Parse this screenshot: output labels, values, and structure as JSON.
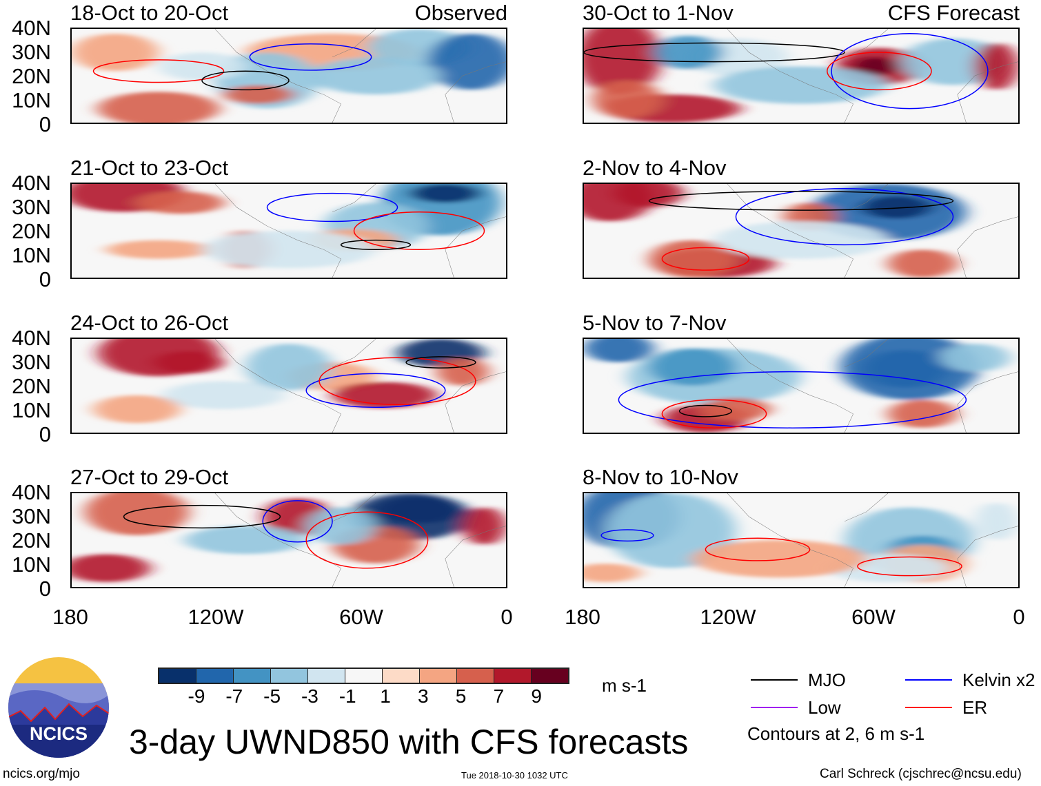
{
  "panels_left": [
    {
      "title": "18-Oct to 20-Oct",
      "tag": "Observed"
    },
    {
      "title": "21-Oct to 23-Oct"
    },
    {
      "title": "24-Oct to 26-Oct"
    },
    {
      "title": "27-Oct to 29-Oct"
    }
  ],
  "panels_right": [
    {
      "title": "30-Oct to 1-Nov",
      "tag": "CFS Forecast"
    },
    {
      "title": "2-Nov to 4-Nov"
    },
    {
      "title": "5-Nov to 7-Nov"
    },
    {
      "title": "8-Nov to 10-Nov"
    }
  ],
  "y_ticks": [
    "40N",
    "30N",
    "20N",
    "10N",
    "0"
  ],
  "x_ticks": [
    "180",
    "120W",
    "60W",
    "0"
  ],
  "colorbar": {
    "colors": [
      "#08306b",
      "#2166ac",
      "#4393c3",
      "#92c5de",
      "#d1e5f0",
      "#f7f7f7",
      "#fddbc7",
      "#f4a582",
      "#d6604d",
      "#b2182b",
      "#67001f"
    ],
    "labels": [
      "-9",
      "-7",
      "-5",
      "-3",
      "-1",
      "1",
      "3",
      "5",
      "7",
      "9"
    ],
    "units": "m s-1"
  },
  "legend": {
    "items": [
      {
        "label": "MJO",
        "color": "#000000"
      },
      {
        "label": "Kelvin x2",
        "color": "#0000ff"
      },
      {
        "label": "Low",
        "color": "#a020f0"
      },
      {
        "label": "ER",
        "color": "#ff0000"
      }
    ],
    "note": "Contours at 2, 6 m s-1"
  },
  "logo_text": "NCICS",
  "main_title": "3-day UWND850 with CFS forecasts",
  "footer": {
    "url": "ncics.org/mjo",
    "timestamp": "Tue 2018-10-30 1032 UTC",
    "credit": "Carl Schreck (cjschrec@ncsu.edu)"
  }
}
